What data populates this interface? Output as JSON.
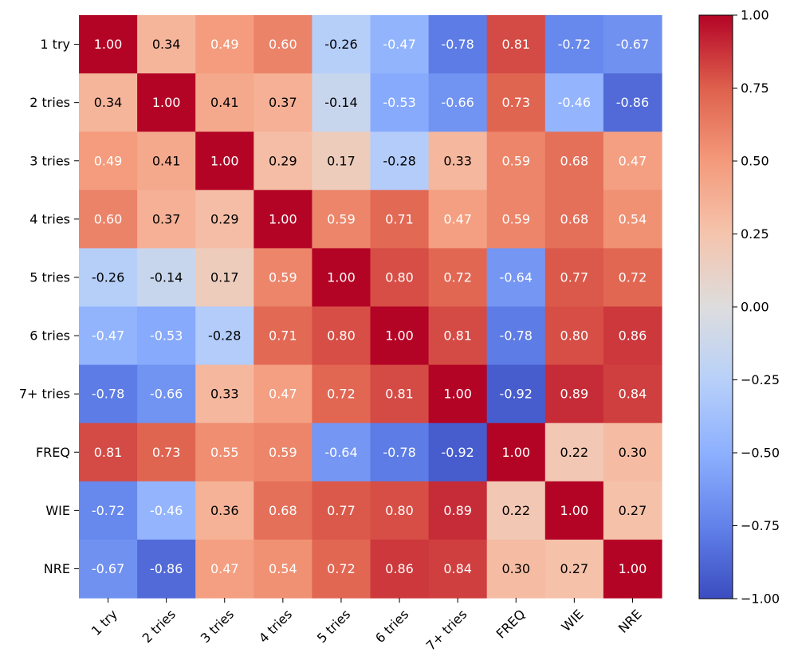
{
  "chart_data": {
    "type": "heatmap",
    "title": "",
    "xlabel": "",
    "ylabel": "",
    "row_labels": [
      "1 try",
      "2 tries",
      "3 tries",
      "4 tries",
      "5 tries",
      "6 tries",
      "7+ tries",
      "FREQ",
      "WIE",
      "NRE"
    ],
    "col_labels": [
      "1 try",
      "2 tries",
      "3 tries",
      "4 tries",
      "5 tries",
      "6 tries",
      "7+ tries",
      "FREQ",
      "WIE",
      "NRE"
    ],
    "values": [
      [
        1.0,
        0.34,
        0.49,
        0.6,
        -0.26,
        -0.47,
        -0.78,
        0.81,
        -0.72,
        -0.67
      ],
      [
        0.34,
        1.0,
        0.41,
        0.37,
        -0.14,
        -0.53,
        -0.66,
        0.73,
        -0.46,
        -0.86
      ],
      [
        0.49,
        0.41,
        1.0,
        0.29,
        0.17,
        -0.28,
        0.33,
        0.59,
        0.68,
        0.47
      ],
      [
        0.6,
        0.37,
        0.29,
        1.0,
        0.59,
        0.71,
        0.47,
        0.59,
        0.68,
        0.54
      ],
      [
        -0.26,
        -0.14,
        0.17,
        0.59,
        1.0,
        0.8,
        0.72,
        -0.64,
        0.77,
        0.72
      ],
      [
        -0.47,
        -0.53,
        -0.28,
        0.71,
        0.8,
        1.0,
        0.81,
        -0.78,
        0.8,
        0.86
      ],
      [
        -0.78,
        -0.66,
        0.33,
        0.47,
        0.72,
        0.81,
        1.0,
        -0.92,
        0.89,
        0.84
      ],
      [
        0.81,
        0.73,
        0.55,
        0.59,
        -0.64,
        -0.78,
        -0.92,
        1.0,
        0.22,
        0.3
      ],
      [
        -0.72,
        -0.46,
        0.36,
        0.68,
        0.77,
        0.8,
        0.89,
        0.22,
        1.0,
        0.27
      ],
      [
        -0.67,
        -0.86,
        0.47,
        0.54,
        0.72,
        0.86,
        0.84,
        0.3,
        0.27,
        1.0
      ]
    ],
    "value_format": "2 decimals",
    "colormap": "coolwarm",
    "vmin": -1.0,
    "vmax": 1.0,
    "colorbar": {
      "ticks": [
        1.0,
        0.75,
        0.5,
        0.25,
        0.0,
        -0.25,
        -0.5,
        -0.75,
        -1.0
      ],
      "tick_labels": [
        "1.00",
        "0.75",
        "0.50",
        "0.25",
        "0.00",
        "−0.25",
        "−0.50",
        "−0.75",
        "−1.00"
      ],
      "placement": "right"
    },
    "grid": false,
    "legend": "none"
  }
}
